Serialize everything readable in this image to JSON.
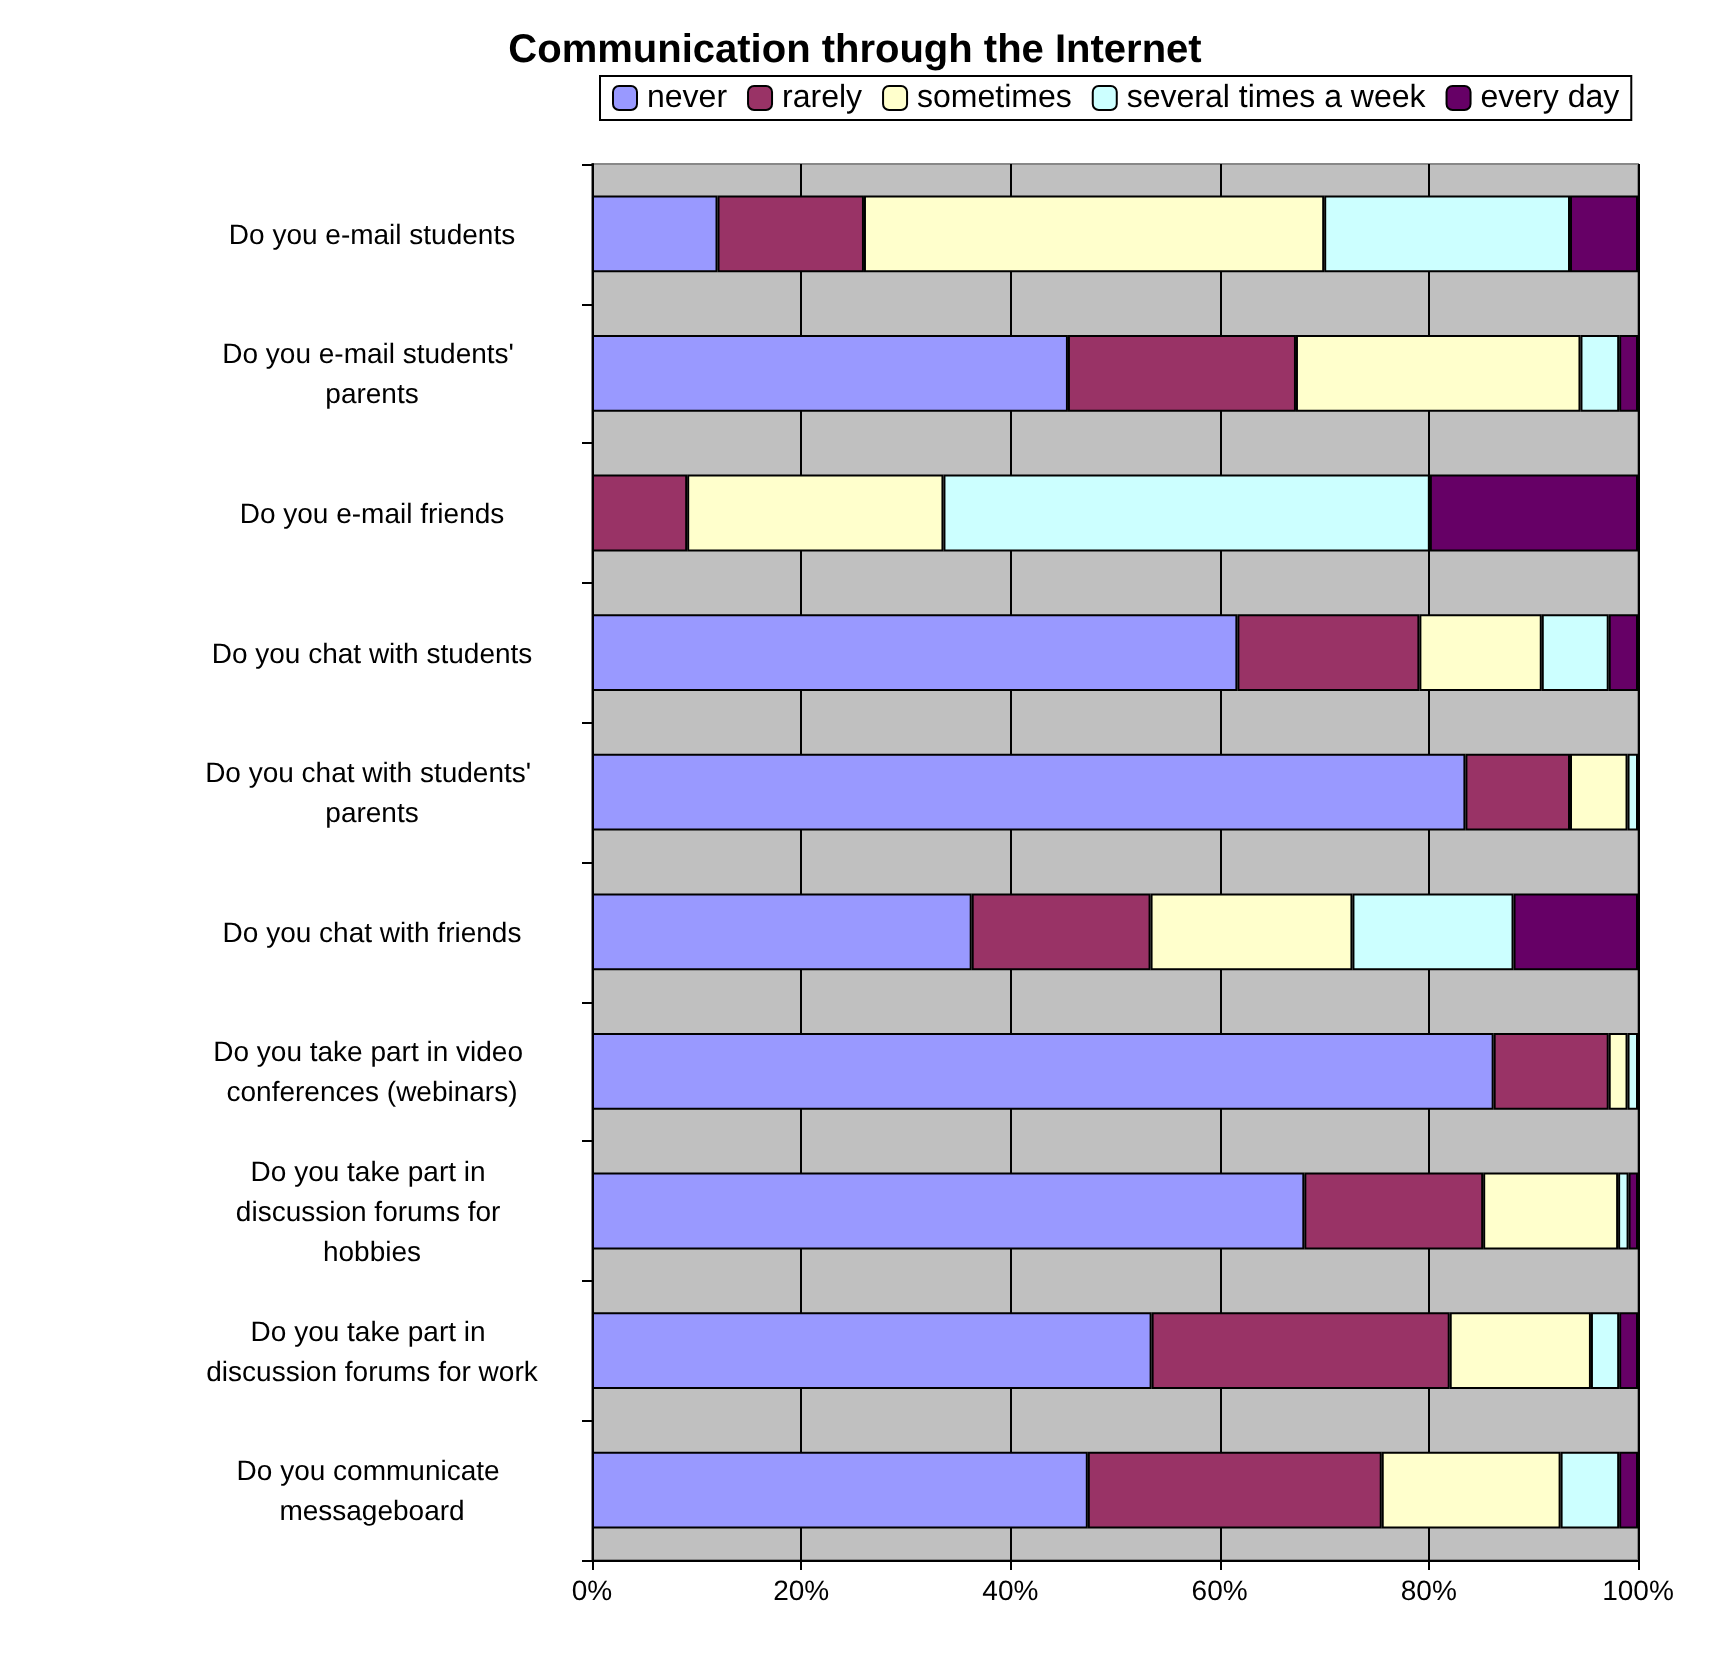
{
  "chart_data": {
    "type": "bar",
    "title": "Communication through the Internet",
    "orientation": "horizontal",
    "stacked": true,
    "categories": [
      "Do you e-mail students",
      "Do you e-mail students' parents",
      "Do you e-mail friends",
      "Do you chat with students",
      "Do you chat with students' parents",
      "Do you chat with friends",
      "Do you take part in video conferences (webinars)",
      "Do you take part in discussion forums for hobbies",
      "Do you take part in discussion forums for work",
      "Do you communicate messageboard"
    ],
    "series": [
      {
        "name": "never",
        "color": "#9999ff",
        "values": [
          12,
          45.5,
          0,
          61.7,
          83.5,
          36.3,
          86.2,
          68.1,
          53.5,
          47.4
        ]
      },
      {
        "name": "rarely",
        "color": "#993366",
        "values": [
          14,
          21.8,
          9.1,
          17.4,
          10,
          17.1,
          11,
          17.1,
          28.5,
          28.1
        ]
      },
      {
        "name": "sometimes",
        "color": "#ffffcc",
        "values": [
          44,
          27.2,
          24.5,
          11.7,
          5.5,
          19.3,
          1.8,
          12.9,
          13.5,
          17.1
        ]
      },
      {
        "name": "several times a week",
        "color": "#ccffff",
        "values": [
          23.5,
          3.7,
          46.5,
          6.4,
          1,
          15.4,
          1,
          1,
          2.7,
          5.6
        ]
      },
      {
        "name": "every day",
        "color": "#660066",
        "values": [
          6.5,
          1.8,
          19.9,
          2.8,
          0,
          11.9,
          0,
          0.9,
          1.8,
          1.8
        ]
      }
    ],
    "xlim": [
      0,
      100
    ],
    "xticks": [
      {
        "value": 0,
        "label": "0%"
      },
      {
        "value": 20,
        "label": "20%"
      },
      {
        "value": 40,
        "label": "40%"
      },
      {
        "value": 60,
        "label": "60%"
      },
      {
        "value": 80,
        "label": "80%"
      },
      {
        "value": 100,
        "label": "100%"
      }
    ],
    "grid": "x",
    "legend": "top"
  }
}
